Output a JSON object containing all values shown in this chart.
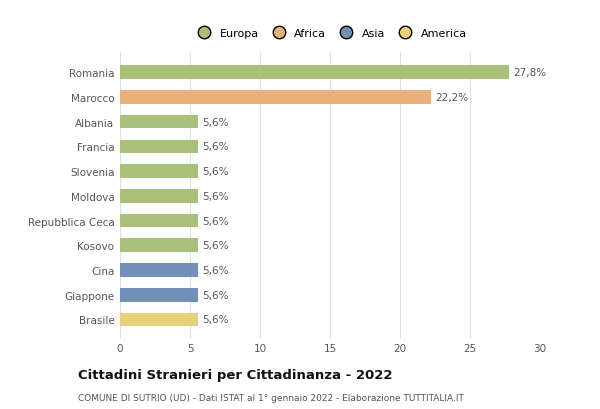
{
  "categories": [
    "Romania",
    "Marocco",
    "Albania",
    "Francia",
    "Slovenia",
    "Moldova",
    "Repubblica Ceca",
    "Kosovo",
    "Cina",
    "Giappone",
    "Brasile"
  ],
  "values": [
    27.8,
    22.2,
    5.6,
    5.6,
    5.6,
    5.6,
    5.6,
    5.6,
    5.6,
    5.6,
    5.6
  ],
  "labels": [
    "27,8%",
    "22,2%",
    "5,6%",
    "5,6%",
    "5,6%",
    "5,6%",
    "5,6%",
    "5,6%",
    "5,6%",
    "5,6%",
    "5,6%"
  ],
  "colors": [
    "#a8c07a",
    "#e8b07a",
    "#a8c07a",
    "#a8c07a",
    "#a8c07a",
    "#a8c07a",
    "#a8c07a",
    "#a8c07a",
    "#7090b8",
    "#7090b8",
    "#e8d07a"
  ],
  "legend_labels": [
    "Europa",
    "Africa",
    "Asia",
    "America"
  ],
  "legend_colors": [
    "#a8c07a",
    "#e8b07a",
    "#7090b8",
    "#e8d07a"
  ],
  "title": "Cittadini Stranieri per Cittadinanza - 2022",
  "subtitle": "COMUNE DI SUTRIO (UD) - Dati ISTAT al 1° gennaio 2022 - Elaborazione TUTTITALIA.IT",
  "xlim": [
    0,
    30
  ],
  "xticks": [
    0,
    5,
    10,
    15,
    20,
    25,
    30
  ],
  "background_color": "#ffffff",
  "grid_color": "#e0e0e0"
}
